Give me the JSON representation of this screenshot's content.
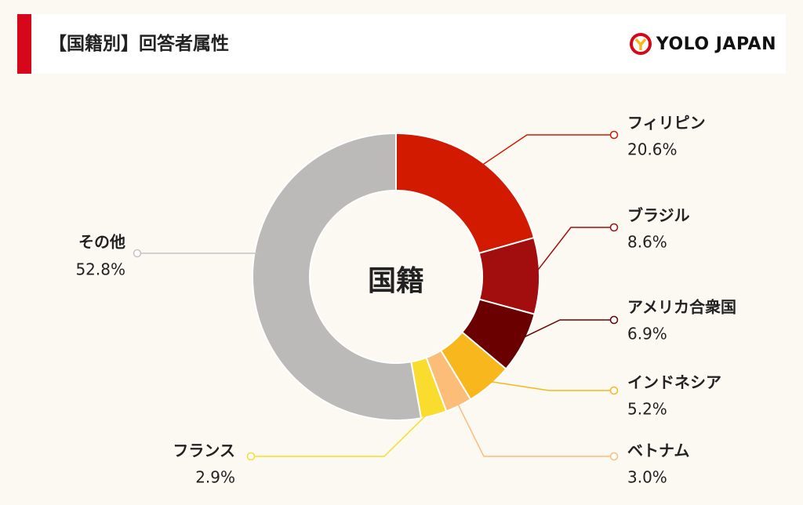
{
  "header": {
    "title": "【国籍別】回答者属性",
    "logo_text": "YOLO JAPAN",
    "accent_color": "#d6071b"
  },
  "chart_data": {
    "type": "pie",
    "center_label": "国籍",
    "slices": [
      {
        "label": "フィリピン",
        "value": 20.6,
        "display": "20.6%",
        "color": "#d11a00"
      },
      {
        "label": "ブラジル",
        "value": 8.6,
        "display": "8.6%",
        "color": "#a20d0d"
      },
      {
        "label": "アメリカ合衆国",
        "value": 6.9,
        "display": "6.9%",
        "color": "#6a0000"
      },
      {
        "label": "インドネシア",
        "value": 5.2,
        "display": "5.2%",
        "color": "#f8b71c"
      },
      {
        "label": "ベトナム",
        "value": 3.0,
        "display": "3.0%",
        "color": "#fbbd78"
      },
      {
        "label": "フランス",
        "value": 2.9,
        "display": "2.9%",
        "color": "#f9dc2e"
      },
      {
        "label": "その他",
        "value": 52.8,
        "display": "52.8%",
        "color": "#bbbab9"
      }
    ]
  }
}
